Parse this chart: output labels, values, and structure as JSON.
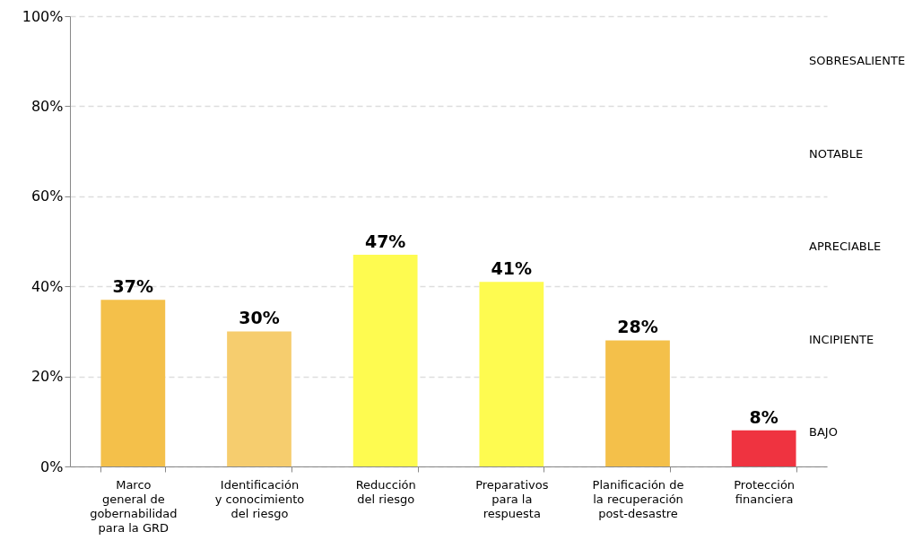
{
  "chart_data": {
    "type": "bar",
    "categories": [
      "Marco\ngeneral de\ngobernabilidad\npara la GRD",
      "Identificación\ny conocimiento\ndel riesgo",
      "Reducción\ndel riesgo",
      "Preparativos\npara la\nrespuesta",
      "Planificación de\nla recuperación\npost-desastre",
      "Protección\nfinanciera"
    ],
    "values": [
      37,
      30,
      47,
      41,
      28,
      8
    ],
    "colors": [
      "#f4c04a",
      "#f6cd6e",
      "#fefb50",
      "#fefb50",
      "#f4c04a",
      "#ef3340"
    ],
    "value_labels": [
      "37%",
      "30%",
      "47%",
      "41%",
      "28%",
      "8%"
    ],
    "ylim": [
      0,
      100
    ],
    "yticks": [
      {
        "value": 0,
        "label": "0%"
      },
      {
        "value": 20,
        "label": "20%"
      },
      {
        "value": 40,
        "label": "40%"
      },
      {
        "value": 60,
        "label": "60%"
      },
      {
        "value": 80,
        "label": "80%"
      },
      {
        "value": 100,
        "label": "100%"
      }
    ],
    "grid": "y",
    "annotations": [
      "SOBRESALIENTE",
      "NOTABLE",
      "APRECIABLE",
      "INCIPIENTE",
      "BAJO"
    ]
  }
}
